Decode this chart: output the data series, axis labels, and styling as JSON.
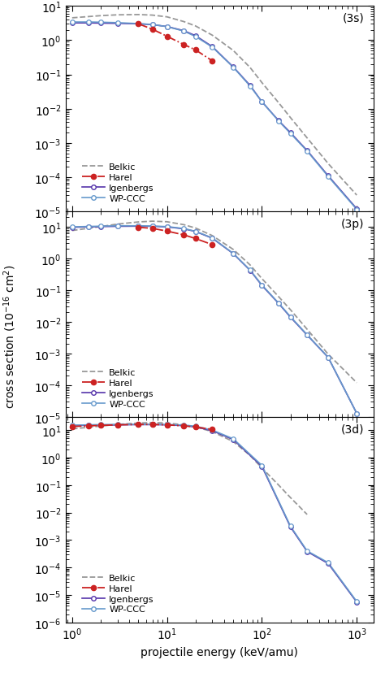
{
  "panels": [
    {
      "label": "(3s)",
      "ylim": [
        1e-05,
        10
      ],
      "belkic": {
        "x": [
          1,
          2,
          3,
          5,
          7,
          10,
          15,
          20,
          30,
          50,
          75,
          100,
          150,
          200,
          300,
          500,
          1000
        ],
        "y": [
          4.5,
          5.2,
          5.5,
          5.6,
          5.4,
          4.8,
          3.5,
          2.6,
          1.4,
          0.5,
          0.16,
          0.058,
          0.015,
          0.0055,
          0.0014,
          0.00025,
          3e-05
        ]
      },
      "harel": {
        "x": [
          5,
          7,
          10,
          15,
          20,
          30
        ],
        "y": [
          3.0,
          2.1,
          1.3,
          0.75,
          0.52,
          0.25
        ]
      },
      "igenbergs": {
        "x": [
          1,
          1.5,
          2,
          3,
          5,
          7,
          10,
          15,
          20,
          30,
          50,
          75,
          100,
          150,
          200,
          300,
          500,
          1000
        ],
        "y": [
          3.2,
          3.2,
          3.15,
          3.1,
          3.0,
          2.85,
          2.5,
          1.9,
          1.35,
          0.65,
          0.165,
          0.048,
          0.016,
          0.0045,
          0.002,
          0.0006,
          0.00011,
          1.2e-05
        ]
      },
      "wpccc": {
        "x": [
          1,
          1.5,
          2,
          3,
          5,
          7,
          10,
          15,
          20,
          30,
          50,
          75,
          100,
          150,
          200,
          300,
          500,
          1000
        ],
        "y": [
          3.4,
          3.4,
          3.35,
          3.25,
          3.05,
          2.88,
          2.48,
          1.85,
          1.28,
          0.63,
          0.162,
          0.046,
          0.016,
          0.0044,
          0.0019,
          0.00058,
          0.000105,
          1.15e-05
        ]
      }
    },
    {
      "label": "(3p)",
      "ylim": [
        1e-05,
        30
      ],
      "belkic": {
        "x": [
          1,
          2,
          3,
          5,
          7,
          10,
          15,
          20,
          30,
          50,
          75,
          100,
          150,
          200,
          300,
          500,
          1000
        ],
        "y": [
          7.5,
          10.0,
          12.0,
          14.0,
          14.8,
          14.2,
          11.5,
          9.0,
          5.2,
          1.9,
          0.62,
          0.23,
          0.062,
          0.024,
          0.0058,
          0.00095,
          0.00012
        ]
      },
      "harel": {
        "x": [
          5,
          7,
          10,
          15,
          20,
          30
        ],
        "y": [
          9.5,
          8.8,
          7.2,
          5.5,
          4.2,
          2.7
        ]
      },
      "igenbergs": {
        "x": [
          1,
          1.5,
          2,
          3,
          5,
          7,
          10,
          15,
          20,
          30,
          50,
          75,
          100,
          150,
          200,
          300,
          500,
          1000
        ],
        "y": [
          9.5,
          9.8,
          10.0,
          10.2,
          10.3,
          10.2,
          9.8,
          8.5,
          7.0,
          4.3,
          1.4,
          0.42,
          0.14,
          0.038,
          0.014,
          0.0038,
          0.00075,
          1.3e-05
        ]
      },
      "wpccc": {
        "x": [
          1,
          1.5,
          2,
          3,
          5,
          7,
          10,
          15,
          20,
          30,
          50,
          75,
          100,
          150,
          200,
          300,
          500,
          1000
        ],
        "y": [
          9.8,
          10.1,
          10.3,
          10.6,
          10.6,
          10.4,
          10.0,
          8.7,
          7.1,
          4.4,
          1.42,
          0.43,
          0.145,
          0.039,
          0.0145,
          0.0039,
          0.00076,
          1.3e-05
        ]
      }
    },
    {
      "label": "(3d)",
      "ylim": [
        1e-06,
        30
      ],
      "belkic": {
        "x": [
          1,
          2,
          3,
          5,
          7,
          10,
          15,
          20,
          30,
          50,
          75,
          100,
          150,
          200,
          300
        ],
        "y": [
          11.0,
          14.0,
          16.0,
          18.0,
          18.8,
          18.0,
          15.5,
          13.0,
          8.8,
          3.8,
          1.2,
          0.42,
          0.1,
          0.035,
          0.0085
        ]
      },
      "harel": {
        "x": [
          1,
          1.5,
          2,
          3,
          5,
          7,
          10,
          15,
          20,
          30
        ],
        "y": [
          13.5,
          14.2,
          14.8,
          15.5,
          16.0,
          16.0,
          15.5,
          14.2,
          13.0,
          10.5
        ]
      },
      "igenbergs": {
        "x": [
          1,
          1.5,
          2,
          3,
          5,
          7,
          10,
          15,
          20,
          30,
          50,
          100,
          200,
          300,
          500,
          1000
        ],
        "y": [
          14.5,
          15.0,
          15.3,
          15.5,
          15.8,
          15.8,
          15.5,
          14.5,
          13.0,
          9.5,
          4.5,
          0.48,
          0.003,
          0.00038,
          0.00014,
          5.5e-06
        ]
      },
      "wpccc": {
        "x": [
          1,
          1.5,
          2,
          3,
          5,
          7,
          10,
          15,
          20,
          30,
          50,
          100,
          200,
          300,
          500,
          1000
        ],
        "y": [
          15.0,
          15.5,
          15.8,
          16.0,
          16.2,
          16.2,
          16.0,
          15.2,
          13.8,
          10.0,
          4.8,
          0.52,
          0.0032,
          0.0004,
          0.00015,
          5.8e-06
        ]
      }
    }
  ],
  "colors": {
    "belkic": "#999999",
    "harel": "#cc2222",
    "igenbergs": "#5533aa",
    "wpccc": "#6699cc"
  },
  "xlabel": "projectile energy (keV/amu)",
  "ylabel": "cross section (10$^{-16}$ cm$^2$)",
  "figsize": [
    4.74,
    8.29
  ],
  "dpi": 100
}
